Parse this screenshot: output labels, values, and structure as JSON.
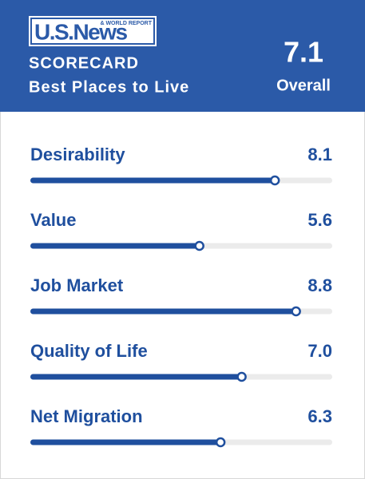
{
  "chart_data": {
    "type": "bar",
    "logo": "U.S.News",
    "logo_tagline": "& WORLD REPORT",
    "title": "SCORECARD",
    "subtitle": "Best Places to Live",
    "overall": {
      "value": 7.1,
      "label": "Overall"
    },
    "categories": [
      "Desirability",
      "Value",
      "Job Market",
      "Quality of Life",
      "Net Migration"
    ],
    "values": [
      8.1,
      5.6,
      8.8,
      7.0,
      6.3
    ],
    "value_labels": [
      "8.1",
      "5.6",
      "8.8",
      "7.0",
      "6.3"
    ],
    "xlim": [
      0,
      10
    ],
    "color": "#1f4f9e",
    "track_color": "#ebebeb",
    "header_color": "#2b5aa8"
  }
}
